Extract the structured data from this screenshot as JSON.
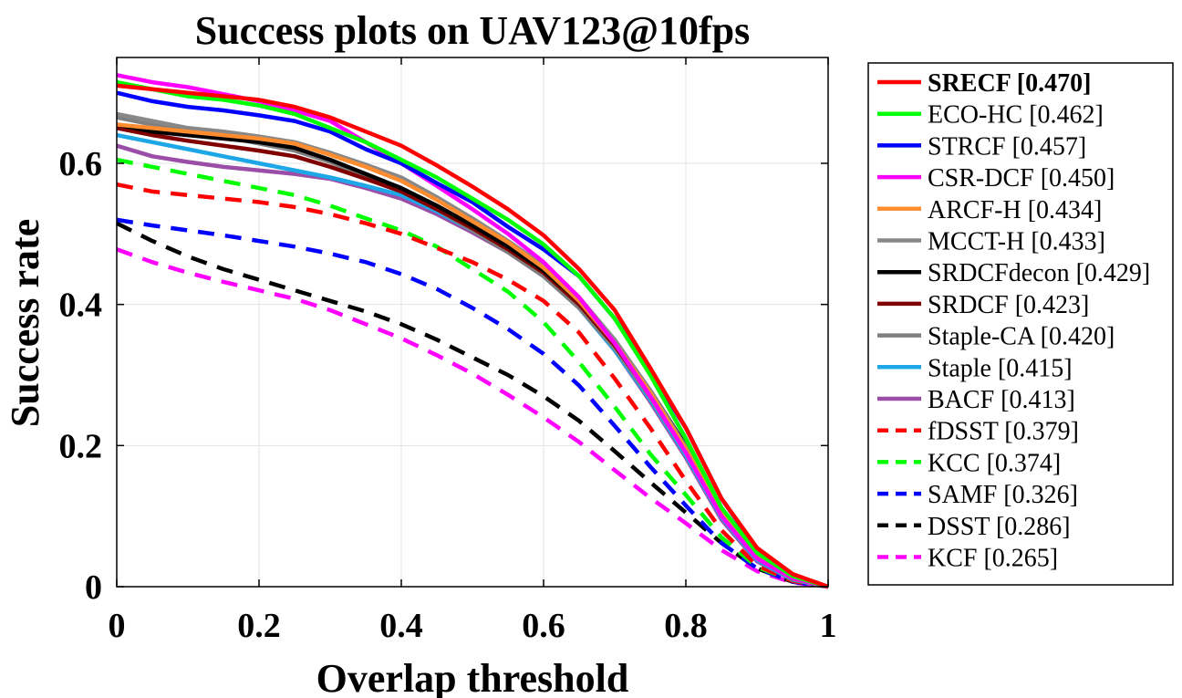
{
  "chart_data": {
    "type": "line",
    "title": "Success plots on UAV123@10fps",
    "xlabel": "Overlap threshold",
    "ylabel": "Success rate",
    "xlim": [
      0,
      1
    ],
    "ylim": [
      0,
      0.75
    ],
    "xticks": [
      "0",
      "0.2",
      "0.4",
      "0.6",
      "0.8",
      "1"
    ],
    "yticks": [
      "0",
      "0.2",
      "0.4",
      "0.6"
    ],
    "grid": true,
    "legend_position": "outside-right",
    "x": [
      0,
      0.05,
      0.1,
      0.15,
      0.2,
      0.25,
      0.3,
      0.35,
      0.4,
      0.45,
      0.5,
      0.55,
      0.6,
      0.65,
      0.7,
      0.75,
      0.8,
      0.85,
      0.9,
      0.95,
      1.0
    ],
    "series": [
      {
        "name": "SRECF [0.470]",
        "color": "#ff0000",
        "dash": false,
        "bold": true,
        "values": [
          0.71,
          0.705,
          0.7,
          0.695,
          0.69,
          0.68,
          0.665,
          0.645,
          0.625,
          0.597,
          0.567,
          0.535,
          0.498,
          0.45,
          0.392,
          0.31,
          0.225,
          0.125,
          0.055,
          0.018,
          0.0
        ]
      },
      {
        "name": "ECO-HC [0.462]",
        "color": "#00ff00",
        "dash": false,
        "bold": false,
        "values": [
          0.715,
          0.705,
          0.695,
          0.69,
          0.682,
          0.67,
          0.65,
          0.63,
          0.605,
          0.58,
          0.55,
          0.52,
          0.485,
          0.44,
          0.38,
          0.3,
          0.21,
          0.112,
          0.048,
          0.015,
          0.0
        ]
      },
      {
        "name": "STRCF [0.457]",
        "color": "#0000ff",
        "dash": false,
        "bold": false,
        "values": [
          0.7,
          0.688,
          0.68,
          0.675,
          0.668,
          0.66,
          0.645,
          0.62,
          0.6,
          0.572,
          0.545,
          0.51,
          0.478,
          0.44,
          0.38,
          0.305,
          0.225,
          0.125,
          0.053,
          0.016,
          0.0
        ]
      },
      {
        "name": "CSR-DCF [0.450]",
        "color": "#ff00ff",
        "dash": false,
        "bold": false,
        "values": [
          0.725,
          0.715,
          0.708,
          0.698,
          0.688,
          0.675,
          0.66,
          0.63,
          0.6,
          0.568,
          0.535,
          0.5,
          0.46,
          0.41,
          0.345,
          0.27,
          0.19,
          0.1,
          0.04,
          0.012,
          0.0
        ]
      },
      {
        "name": "ARCF-H [0.434]",
        "color": "#ff8c2e",
        "dash": false,
        "bold": false,
        "values": [
          0.655,
          0.65,
          0.645,
          0.64,
          0.635,
          0.628,
          0.612,
          0.595,
          0.575,
          0.548,
          0.518,
          0.488,
          0.452,
          0.405,
          0.345,
          0.275,
          0.195,
          0.105,
          0.042,
          0.012,
          0.0
        ]
      },
      {
        "name": "MCCT-H [0.433]",
        "color": "#888888",
        "dash": false,
        "bold": false,
        "values": [
          0.67,
          0.66,
          0.65,
          0.645,
          0.638,
          0.63,
          0.615,
          0.598,
          0.58,
          0.552,
          0.522,
          0.49,
          0.455,
          0.41,
          0.35,
          0.278,
          0.198,
          0.108,
          0.045,
          0.013,
          0.0
        ]
      },
      {
        "name": "SRDCFdecon [0.429]",
        "color": "#000000",
        "dash": false,
        "bold": false,
        "values": [
          0.655,
          0.645,
          0.64,
          0.635,
          0.63,
          0.622,
          0.605,
          0.585,
          0.565,
          0.54,
          0.512,
          0.482,
          0.448,
          0.405,
          0.348,
          0.278,
          0.2,
          0.11,
          0.045,
          0.013,
          0.0
        ]
      },
      {
        "name": "SRDCF [0.423]",
        "color": "#800000",
        "dash": false,
        "bold": false,
        "values": [
          0.65,
          0.64,
          0.632,
          0.625,
          0.618,
          0.61,
          0.595,
          0.578,
          0.56,
          0.535,
          0.508,
          0.478,
          0.445,
          0.4,
          0.342,
          0.272,
          0.195,
          0.105,
          0.043,
          0.012,
          0.0
        ]
      },
      {
        "name": "Staple-CA [0.420]",
        "color": "#7f7f7f",
        "dash": false,
        "bold": false,
        "values": [
          0.665,
          0.655,
          0.645,
          0.638,
          0.628,
          0.618,
          0.602,
          0.582,
          0.562,
          0.535,
          0.505,
          0.474,
          0.44,
          0.395,
          0.338,
          0.268,
          0.19,
          0.1,
          0.04,
          0.011,
          0.0
        ]
      },
      {
        "name": "Staple [0.415]",
        "color": "#1ea7e6",
        "dash": false,
        "bold": false,
        "values": [
          0.64,
          0.63,
          0.62,
          0.61,
          0.6,
          0.59,
          0.58,
          0.568,
          0.555,
          0.532,
          0.505,
          0.475,
          0.44,
          0.395,
          0.335,
          0.265,
          0.186,
          0.098,
          0.038,
          0.01,
          0.0
        ]
      },
      {
        "name": "BACF [0.413]",
        "color": "#9b4ea8",
        "dash": false,
        "bold": false,
        "values": [
          0.625,
          0.61,
          0.602,
          0.595,
          0.59,
          0.585,
          0.578,
          0.565,
          0.55,
          0.528,
          0.502,
          0.474,
          0.44,
          0.395,
          0.335,
          0.262,
          0.183,
          0.095,
          0.036,
          0.01,
          0.0
        ]
      },
      {
        "name": "fDSST [0.379]",
        "color": "#ff0000",
        "dash": true,
        "bold": false,
        "values": [
          0.57,
          0.56,
          0.555,
          0.55,
          0.545,
          0.538,
          0.528,
          0.515,
          0.5,
          0.48,
          0.46,
          0.435,
          0.405,
          0.36,
          0.295,
          0.225,
          0.15,
          0.08,
          0.03,
          0.008,
          0.0
        ]
      },
      {
        "name": "KCC [0.374]",
        "color": "#00ff00",
        "dash": true,
        "bold": false,
        "values": [
          0.605,
          0.595,
          0.585,
          0.575,
          0.565,
          0.555,
          0.54,
          0.522,
          0.505,
          0.482,
          0.45,
          0.418,
          0.375,
          0.318,
          0.255,
          0.188,
          0.13,
          0.07,
          0.028,
          0.008,
          0.0
        ]
      },
      {
        "name": "SAMF [0.326]",
        "color": "#0000ff",
        "dash": true,
        "bold": false,
        "values": [
          0.52,
          0.512,
          0.505,
          0.498,
          0.49,
          0.482,
          0.472,
          0.46,
          0.443,
          0.422,
          0.395,
          0.365,
          0.33,
          0.285,
          0.228,
          0.17,
          0.115,
          0.062,
          0.026,
          0.007,
          0.0
        ]
      },
      {
        "name": "DSST [0.286]",
        "color": "#000000",
        "dash": true,
        "bold": false,
        "values": [
          0.515,
          0.49,
          0.468,
          0.45,
          0.435,
          0.42,
          0.405,
          0.39,
          0.372,
          0.35,
          0.325,
          0.3,
          0.27,
          0.235,
          0.192,
          0.148,
          0.105,
          0.062,
          0.026,
          0.007,
          0.0
        ]
      },
      {
        "name": "KCF [0.265]",
        "color": "#ff00ff",
        "dash": true,
        "bold": false,
        "values": [
          0.478,
          0.46,
          0.445,
          0.432,
          0.42,
          0.408,
          0.392,
          0.372,
          0.352,
          0.328,
          0.302,
          0.272,
          0.24,
          0.205,
          0.165,
          0.126,
          0.09,
          0.052,
          0.022,
          0.006,
          0.0
        ]
      }
    ]
  }
}
